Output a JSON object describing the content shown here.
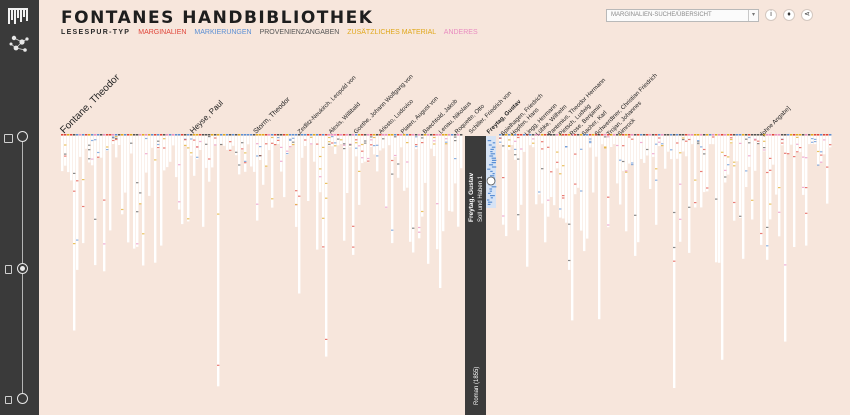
{
  "app": {
    "title": "FONTANES HANDBIBLIOTHEK"
  },
  "legend": {
    "label": "LESESPUR-TYP",
    "items": [
      {
        "label": "MARGINALIEN",
        "color": "#e0453a"
      },
      {
        "label": "MARKIERUNGEN",
        "color": "#5b8fd4"
      },
      {
        "label": "PROVENIENZANGABEN",
        "color": "#555555"
      },
      {
        "label": "ZUSÄTZLICHES MATERIAL",
        "color": "#e0a81c"
      },
      {
        "label": "ANDERES",
        "color": "#e98cc0"
      }
    ]
  },
  "search": {
    "value": "MARGINALIEN-SUCHE/ÜBERSICHT"
  },
  "icons": {
    "info": "info-icon",
    "bulb": "lightbulb-icon",
    "share": "share-icon"
  },
  "authors": [
    {
      "name": "Fontane, Theodor",
      "size": "big"
    },
    {
      "name": "Heyse, Paul",
      "size": "mid"
    },
    {
      "name": "Storm, Theodor",
      "size": "mid"
    },
    {
      "name": "Zedlitz-Neukirch, Leopold von",
      "size": "small"
    },
    {
      "name": "Alexis, Willibald",
      "size": "small"
    },
    {
      "name": "Goethe, Johann Wolfgang von",
      "size": "small"
    },
    {
      "name": "Ariosto, Ludovico",
      "size": "small"
    },
    {
      "name": "Platen, August von",
      "size": "small"
    },
    {
      "name": "Baechtold, Jakob",
      "size": "small"
    },
    {
      "name": "Lenau, Nikolaus",
      "size": "small"
    },
    {
      "name": "Roquette, Otto",
      "size": "small"
    },
    {
      "name": "Schiller, Friedrich von",
      "size": "small"
    },
    {
      "name": "Freytag, Gustav",
      "size": "small"
    },
    {
      "name": "Spielhagen, Friedrich",
      "size": "small"
    },
    {
      "name": "Hopfen, Hans",
      "size": "small"
    },
    {
      "name": "Lingg, Hermann",
      "size": "small"
    },
    {
      "name": "Lübke, Wilhelm",
      "size": "small"
    },
    {
      "name": "Pantenius, Theodor Hermann",
      "size": "small"
    },
    {
      "name": "Pietsch, Ludwig",
      "size": "small"
    },
    {
      "name": "Rose, Benjamin",
      "size": "small"
    },
    {
      "name": "Sacher, Karl",
      "size": "small"
    },
    {
      "name": "Schwerdtner, Christian Friedrich",
      "size": "small"
    },
    {
      "name": "Trojan, Johannes",
      "size": "small"
    },
    {
      "name": "Simrock",
      "size": "small"
    },
    {
      "name": "[ohne Angabe]",
      "size": "small"
    }
  ],
  "selected": {
    "author": "Freytag, Gustav",
    "book": "Soll und Haben 1",
    "genre": "Roman (1855)"
  }
}
